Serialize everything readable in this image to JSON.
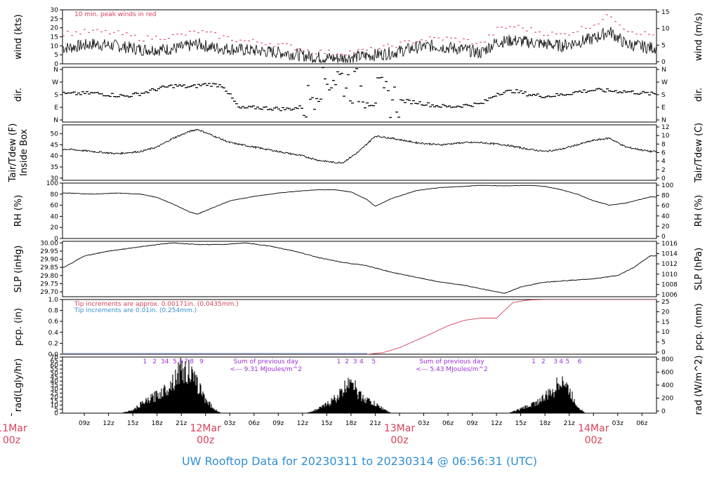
{
  "footer": {
    "title": "UW Rooftop Data for 20230311  to  20230314 @ 06:56:31  (UTC)"
  },
  "colors": {
    "frame": "#000000",
    "peak_red": "#d6405a",
    "blue": "#3a8fd0",
    "purple": "#9b30d9",
    "pcp_line": "#d6405a"
  },
  "time_axis": {
    "ticks": [
      {
        "label": "09z",
        "hour": 9
      },
      {
        "label": "12z",
        "hour": 12
      },
      {
        "label": "15z",
        "hour": 15
      },
      {
        "label": "18z",
        "hour": 18
      },
      {
        "label": "21z",
        "hour": 21
      },
      {
        "label": "03z",
        "hour": 27
      },
      {
        "label": "06z",
        "hour": 30
      },
      {
        "label": "09z",
        "hour": 33
      },
      {
        "label": "12z",
        "hour": 36
      },
      {
        "label": "15z",
        "hour": 39
      },
      {
        "label": "18z",
        "hour": 42
      },
      {
        "label": "21z",
        "hour": 45
      },
      {
        "label": "03z",
        "hour": 51
      },
      {
        "label": "06z",
        "hour": 54
      },
      {
        "label": "09z",
        "hour": 57
      },
      {
        "label": "12z",
        "hour": 60
      },
      {
        "label": "15z",
        "hour": 63
      },
      {
        "label": "18z",
        "hour": 66
      },
      {
        "label": "21z",
        "hour": 69
      },
      {
        "label": "03z",
        "hour": 75
      },
      {
        "label": "06z",
        "hour": 78
      }
    ],
    "day_labels": [
      {
        "day": "11Mar",
        "zulu": "00z",
        "hour": 0
      },
      {
        "day": "12Mar",
        "zulu": "00z",
        "hour": 24
      },
      {
        "day": "13Mar",
        "zulu": "00z",
        "hour": 48
      },
      {
        "day": "14Mar",
        "zulu": "00z",
        "hour": 72
      }
    ]
  },
  "chart_data": [
    {
      "type": "line",
      "panel": "wind",
      "ylabel_left": "wind (kts)",
      "ylabel_right": "wind (m/s)",
      "yticks_left": [
        "0",
        "5",
        "10",
        "15",
        "20",
        "25",
        "30"
      ],
      "yticks_right": [
        "0",
        "5",
        "10",
        "15"
      ],
      "ylim": [
        0,
        30
      ],
      "annotation": "10 min. peak winds in red",
      "series": [
        {
          "name": "",
          "x_hours": [
            7,
            10,
            13,
            16,
            19,
            21,
            23,
            25,
            28,
            31,
            34,
            37,
            40,
            43,
            45,
            47,
            50,
            52,
            54,
            56,
            58,
            60,
            62,
            64,
            66,
            68,
            70,
            72,
            74,
            76,
            79
          ],
          "values": [
            9,
            11,
            10,
            8,
            8,
            9,
            11,
            9,
            8,
            7,
            6,
            4,
            3,
            4,
            5,
            6,
            9,
            10,
            9,
            8,
            6,
            12,
            13,
            12,
            11,
            10,
            12,
            14,
            18,
            11,
            9
          ]
        },
        {
          "name": "10 min. peak winds",
          "x_hours": [
            7,
            10,
            13,
            16,
            19,
            21,
            23,
            25,
            28,
            31,
            34,
            37,
            40,
            43,
            45,
            47,
            50,
            52,
            54,
            56,
            58,
            60,
            62,
            64,
            66,
            68,
            70,
            72,
            74,
            76,
            79
          ],
          "values": [
            17,
            18,
            17,
            14,
            15,
            16,
            18,
            16,
            13,
            12,
            10,
            7,
            6,
            7,
            8,
            10,
            13,
            14,
            14,
            13,
            11,
            19,
            21,
            19,
            17,
            16,
            19,
            22,
            27,
            19,
            16
          ]
        }
      ]
    },
    {
      "type": "scatter",
      "panel": "direction",
      "ylabel_left": "dir.",
      "ylabel_right": "dir.",
      "yticks_left": [
        "N",
        "E",
        "S",
        "W",
        "N"
      ],
      "yticks_right": [
        "N",
        "E",
        "S",
        "W",
        "N"
      ],
      "ylim": [
        0,
        360
      ],
      "series": [
        {
          "name": "",
          "x_hours": [
            7,
            10,
            12,
            14,
            16,
            18,
            20,
            22,
            24,
            26,
            28,
            30,
            32,
            34,
            36,
            38,
            40,
            42,
            44,
            46,
            48,
            50,
            52,
            54,
            56,
            58,
            60,
            62,
            64,
            66,
            68,
            70,
            72,
            74,
            76,
            79
          ],
          "values": [
            185,
            190,
            180,
            170,
            190,
            220,
            240,
            230,
            250,
            240,
            90,
            95,
            90,
            85,
            100,
            270,
            300,
            240,
            200,
            160,
            140,
            130,
            110,
            100,
            110,
            120,
            190,
            205,
            180,
            170,
            180,
            200,
            210,
            205,
            200,
            185
          ]
        }
      ]
    },
    {
      "type": "line",
      "panel": "temperature",
      "ylabel_left": "Tair/Tdew (F)\nInside Box",
      "ylabel_right": "Tair/Tdew (C)",
      "yticks_left": [
        "30",
        "35",
        "40",
        "45",
        "50"
      ],
      "yticks_right": [
        "0",
        "2",
        "4",
        "6",
        "8",
        "10",
        "12"
      ],
      "ylim": [
        29,
        54
      ],
      "series": [
        {
          "name": "",
          "x_hours": [
            7,
            10,
            13,
            16,
            18,
            20,
            22,
            23,
            25,
            27,
            30,
            33,
            36,
            38,
            40,
            41,
            43,
            45,
            47,
            50,
            53,
            56,
            58,
            61,
            64,
            66,
            68,
            70,
            72,
            74,
            76,
            79
          ],
          "values": [
            43,
            42,
            41,
            42,
            44,
            48,
            51,
            52,
            49,
            46,
            44,
            42,
            40,
            38,
            37,
            37,
            42,
            49,
            48,
            46,
            45,
            46,
            46,
            45,
            43,
            42,
            43,
            45,
            47,
            48,
            44,
            42
          ]
        }
      ]
    },
    {
      "type": "line",
      "panel": "rh",
      "ylabel_left": "RH (%)",
      "ylabel_right": "RH (%)",
      "yticks_left": [
        "0",
        "20",
        "40",
        "60",
        "80",
        "100"
      ],
      "yticks_right": [
        "0",
        "20",
        "40",
        "60",
        "80",
        "100"
      ],
      "ylim": [
        0,
        100
      ],
      "series": [
        {
          "name": "",
          "x_hours": [
            7,
            10,
            13,
            16,
            18,
            20,
            22,
            23,
            25,
            27,
            30,
            33,
            36,
            38,
            40,
            42,
            44,
            45,
            47,
            50,
            53,
            56,
            58,
            61,
            64,
            66,
            68,
            70,
            72,
            74,
            76,
            79
          ],
          "values": [
            82,
            80,
            82,
            80,
            74,
            62,
            48,
            44,
            56,
            68,
            76,
            82,
            86,
            88,
            88,
            84,
            70,
            58,
            72,
            86,
            92,
            94,
            96,
            95,
            96,
            94,
            88,
            80,
            68,
            60,
            64,
            75
          ]
        }
      ]
    },
    {
      "type": "line",
      "panel": "slp",
      "ylabel_left": "SLP (inHg)",
      "ylabel_right": "SLP (hPa)",
      "yticks_left": [
        "29.70",
        "29.75",
        "29.80",
        "29.85",
        "29.90",
        "29.95",
        "30.00"
      ],
      "yticks_right": [
        "1006",
        "1008",
        "1010",
        "1012",
        "1014",
        "1016"
      ],
      "ylim": [
        29.67,
        30.01
      ],
      "series": [
        {
          "name": "",
          "x_hours": [
            6.5,
            9,
            12,
            15,
            18,
            20,
            23,
            26,
            29,
            32,
            35,
            38,
            41,
            44,
            47,
            50,
            53,
            56,
            59,
            61,
            63,
            66,
            69,
            72,
            75,
            77,
            79
          ],
          "values": [
            29.85,
            29.92,
            29.95,
            29.97,
            29.99,
            30.0,
            29.99,
            29.99,
            30.0,
            29.98,
            29.95,
            29.91,
            29.88,
            29.86,
            29.82,
            29.79,
            29.76,
            29.74,
            29.71,
            29.69,
            29.73,
            29.76,
            29.77,
            29.78,
            29.8,
            29.85,
            29.92
          ]
        }
      ]
    },
    {
      "type": "line",
      "panel": "precipitation",
      "ylabel_left": "pcp. (in)",
      "ylabel_right": "pcp. (mm)",
      "yticks_left": [
        "0.0",
        "0.2",
        "0.4",
        "0.6",
        "0.8",
        "1.0"
      ],
      "yticks_right": [
        "0",
        "5",
        "10",
        "15",
        "20",
        "25"
      ],
      "ylim": [
        0,
        1.0
      ],
      "annotations": [
        "Tip increments are approx. 0.00171in. (0.0435mm.)",
        "Tip increments are 0.01in. (0.254mm.)"
      ],
      "series": [
        {
          "name": "",
          "x_hours": [
            6.5,
            44,
            46,
            48,
            50,
            52,
            54,
            56,
            58,
            60,
            61,
            62,
            63,
            64,
            66,
            68,
            79
          ],
          "values": [
            0.0,
            0.0,
            0.03,
            0.12,
            0.25,
            0.38,
            0.52,
            0.62,
            0.66,
            0.66,
            0.8,
            0.94,
            0.97,
            0.99,
            1.0,
            1.0,
            1.0
          ]
        }
      ]
    },
    {
      "type": "area",
      "panel": "radiation",
      "ylabel_left": "rad(Lgly/hr)",
      "ylabel_right": "rad (W/m^2)",
      "yticks_left": [
        "0",
        "5",
        "10",
        "15",
        "20",
        "25",
        "30",
        "35",
        "40",
        "45",
        "50",
        "55",
        "60",
        "65",
        "70"
      ],
      "yticks_right": [
        "0",
        "200",
        "400",
        "600",
        "800"
      ],
      "ylim": [
        0,
        70
      ],
      "hour_marks": [
        {
          "label": "1",
          "hour": 16.5
        },
        {
          "label": "2",
          "hour": 17.7
        },
        {
          "label": "3",
          "hour": 18.7
        },
        {
          "label": "4",
          "hour": 19.2
        },
        {
          "label": "5",
          "hour": 20.2
        },
        {
          "label": "6",
          "hour": 21.0
        },
        {
          "label": "7",
          "hour": 21.6
        },
        {
          "label": "8",
          "hour": 22.3
        },
        {
          "label": "9",
          "hour": 23.5
        },
        {
          "label": "1",
          "hour": 40.5
        },
        {
          "label": "2",
          "hour": 41.5
        },
        {
          "label": "3",
          "hour": 42.5
        },
        {
          "label": "4",
          "hour": 43.3
        },
        {
          "label": "5",
          "hour": 44.8
        },
        {
          "label": "1",
          "hour": 64.6
        },
        {
          "label": "2",
          "hour": 65.8
        },
        {
          "label": "3",
          "hour": 67.3
        },
        {
          "label": "4",
          "hour": 68.0
        },
        {
          "label": "5",
          "hour": 68.8
        },
        {
          "label": "6",
          "hour": 70.3
        }
      ],
      "daily_sums": [
        {
          "title": "Sum of previous day",
          "value": "<--- 9.31 MJoules/m^2",
          "hour": 28
        },
        {
          "title": "Sum of previous day",
          "value": "<--- 5.43 MJoules/m^2",
          "hour": 51
        }
      ],
      "series": [
        {
          "name": "",
          "x_hours": [
            13.5,
            15,
            16,
            17,
            18,
            19,
            20,
            20.5,
            21,
            21.5,
            22,
            22.5,
            23,
            24,
            25,
            26,
            36.5,
            38,
            39,
            40,
            41,
            41.5,
            42,
            42.5,
            43,
            44,
            45,
            46,
            47,
            61.5,
            63,
            64,
            65,
            66,
            67,
            67.5,
            68,
            68.5,
            69,
            70,
            71
          ],
          "values": [
            0,
            4,
            12,
            18,
            25,
            32,
            45,
            55,
            65,
            55,
            60,
            45,
            40,
            20,
            6,
            0,
            0,
            6,
            12,
            20,
            30,
            40,
            55,
            35,
            25,
            18,
            12,
            6,
            0,
            0,
            6,
            10,
            15,
            22,
            30,
            38,
            50,
            40,
            30,
            10,
            0
          ]
        }
      ]
    }
  ]
}
